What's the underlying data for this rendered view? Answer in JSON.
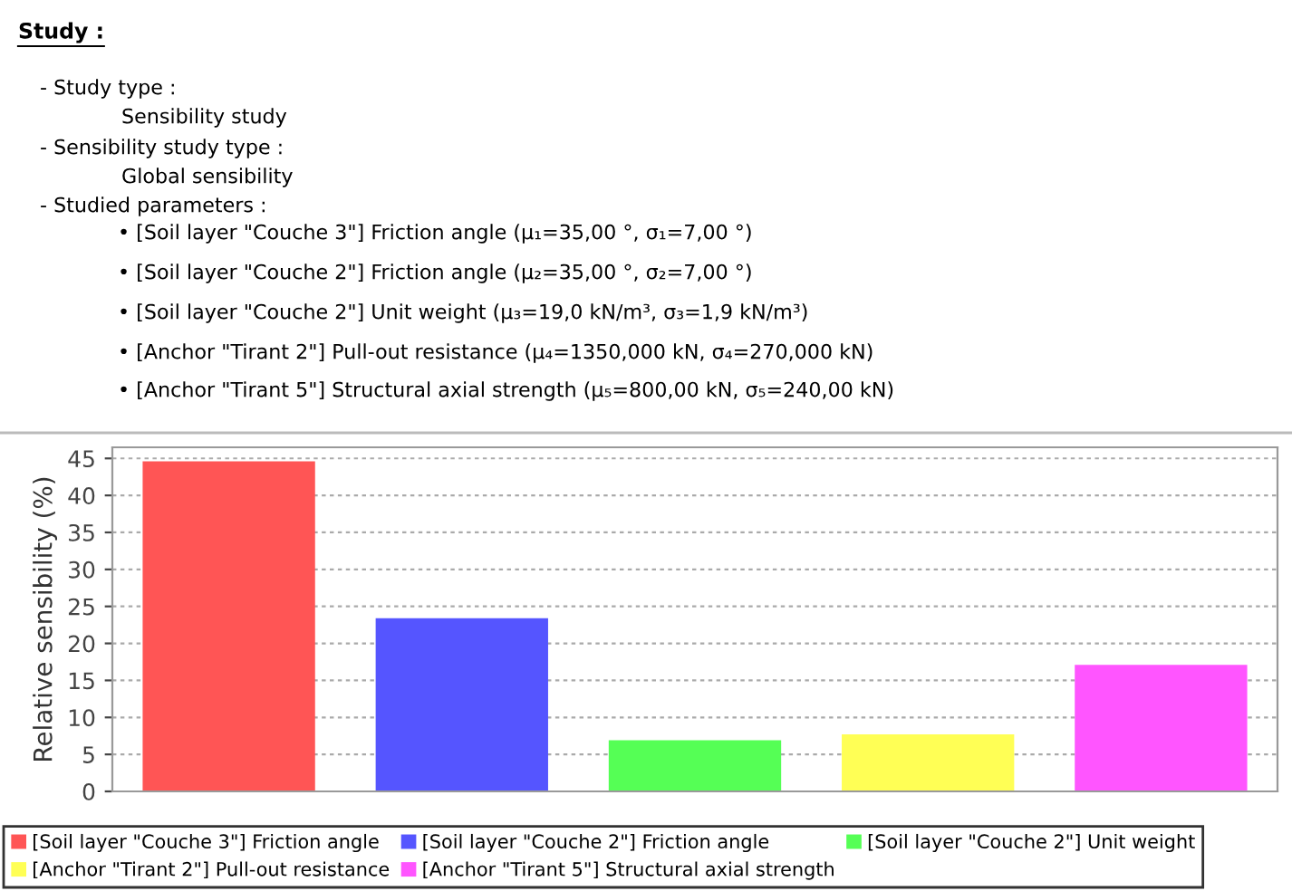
{
  "chart_data": {
    "type": "bar",
    "title": "Study :",
    "annotations": [
      "- Study type :",
      "Sensibility study",
      "- Sensibility study type :",
      "Global sensibility",
      "- Studied parameters :",
      "• [Soil layer \"Couche 3\"] Friction angle (μ₁=35,00 °, σ₁=7,00 °)",
      "• [Soil layer \"Couche 2\"] Friction angle (μ₂=35,00 °, σ₂=7,00 °)",
      "• [Soil layer \"Couche 2\"] Unit weight (μ₃=19,0 kN/m³, σ₃=1,9 kN/m³)",
      "• [Anchor \"Tirant 2\"] Pull-out resistance (μ₄=1350,000 kN, σ₄=270,000 kN)",
      "• [Anchor \"Tirant 5\"] Structural axial strength (μ₅=800,00 kN, σ₅=240,00 kN)"
    ],
    "ylabel": "Relative sensibility (%)",
    "categories": [
      null,
      null,
      null,
      null,
      null
    ],
    "series": [
      {
        "name": "[Soil layer \"Couche 3\"] Friction angle",
        "color": "#ff5555",
        "values": [
          44.6,
          null,
          null,
          null,
          null
        ]
      },
      {
        "name": "[Soil layer \"Couche 2\"] Friction angle",
        "color": "#5555ff",
        "values": [
          null,
          23.4,
          null,
          null,
          null
        ]
      },
      {
        "name": "[Soil layer \"Couche 2\"] Unit weight",
        "color": "#55ff55",
        "values": [
          null,
          null,
          6.9,
          null,
          null
        ]
      },
      {
        "name": "[Anchor \"Tirant 2\"] Pull-out resistance",
        "color": "#ffff55",
        "values": [
          null,
          null,
          null,
          7.7,
          null
        ]
      },
      {
        "name": "[Anchor \"Tirant 5\"] Structural axial strength",
        "color": "#ff55ff",
        "values": [
          null,
          null,
          null,
          null,
          17.1
        ]
      }
    ],
    "ylim": [
      0,
      46.5
    ],
    "yticks": [
      0,
      5,
      10,
      15,
      20,
      25,
      30,
      35,
      40,
      45
    ],
    "grid": "y",
    "legend": "bottom"
  }
}
